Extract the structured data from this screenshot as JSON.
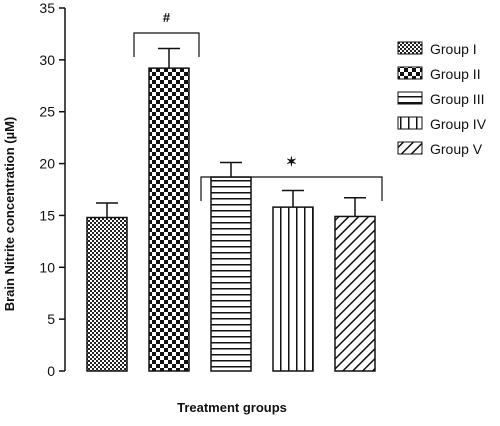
{
  "chart_data": {
    "type": "bar",
    "categories": [
      "Group I",
      "Group II",
      "Group III",
      "Group IV",
      "Group V"
    ],
    "values": [
      14.8,
      29.2,
      18.7,
      15.8,
      14.9
    ],
    "errors": [
      1.4,
      1.9,
      1.4,
      1.6,
      1.8
    ],
    "patterns": [
      "crosshatch-fine",
      "checker",
      "horizontal-lines",
      "vertical-lines",
      "diagonal-lines"
    ],
    "xlabel": "Treatment groups",
    "ylabel": "Brain Nitrite concentration (µM)",
    "ylim": [
      0,
      35
    ],
    "yticks": [
      0,
      5,
      10,
      15,
      20,
      25,
      30,
      35
    ],
    "legend": {
      "placement": "right",
      "items": [
        "Group I",
        "Group II",
        "Group III",
        "Group IV",
        "Group V"
      ]
    },
    "annotations": [
      {
        "text": "#",
        "spans": [
          "Group II"
        ]
      },
      {
        "text": "✶",
        "spans": [
          "Group III",
          "Group IV",
          "Group V"
        ]
      }
    ],
    "colors": {
      "ink": "#111111",
      "background": "#ffffff"
    }
  }
}
